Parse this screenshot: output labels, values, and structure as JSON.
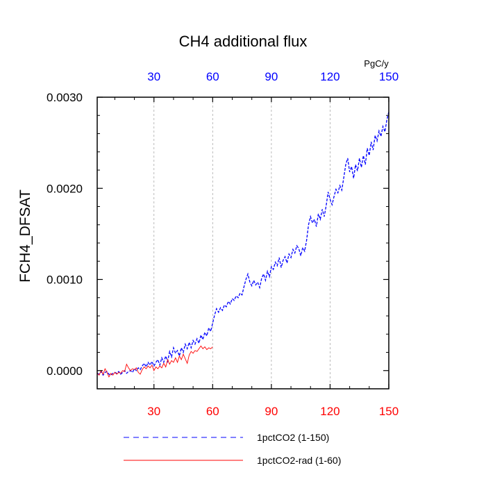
{
  "chart_data": {
    "type": "line",
    "title": "CH4 additional flux",
    "ylabel": "FCH4_DFSAT",
    "xlabel": "",
    "xlim": [
      1,
      150
    ],
    "ylim": [
      -0.0002,
      0.003
    ],
    "grid": "vertical dashed at bottom x ticks",
    "bottom_axis": {
      "ticks": [
        30,
        60,
        90,
        120,
        150
      ],
      "tick_labels": [
        "30",
        "60",
        "90",
        "120",
        "150"
      ],
      "color": "#ff0000"
    },
    "top_axis": {
      "ticks": [
        30,
        60,
        90,
        120,
        150
      ],
      "tick_labels": [
        "30",
        "60",
        "90",
        "120",
        "150"
      ],
      "unit_label": "PgC/y",
      "color": "#0000ff"
    },
    "y_axis": {
      "ticks": [
        0.0,
        0.001,
        0.002,
        0.003
      ],
      "tick_labels": [
        "0.0000",
        "0.0010",
        "0.0020",
        "0.0030"
      ]
    },
    "legend_position": "bottom-center",
    "series": [
      {
        "name": "1pctCO2 (1-150)",
        "color": "#0000ff",
        "dash": "dashed",
        "x_start": 1,
        "y": [
          -3e-05,
          -4e-05,
          -1e-05,
          -5e-05,
          -2e-05,
          -1e-05,
          -4e-05,
          -5e-05,
          -3e-05,
          -2e-05,
          -3e-05,
          -1e-05,
          -4e-05,
          -2e-05,
          0.0,
          -3e-05,
          -1e-05,
          0.0,
          -2e-05,
          2e-05,
          0.0,
          3e-05,
          1e-05,
          5e-05,
          8e-05,
          4e-05,
          9e-05,
          6e-05,
          0.0001,
          5e-05,
          9e-05,
          0.00012,
          6e-05,
          0.00014,
          9e-05,
          0.00016,
          0.0001,
          0.00021,
          0.00015,
          0.00025,
          0.00019,
          0.00022,
          0.00016,
          0.00025,
          0.0002,
          0.00029,
          0.00024,
          0.00031,
          0.00025,
          0.00033,
          0.00029,
          0.00035,
          0.0003,
          0.00039,
          0.00034,
          0.00042,
          0.00038,
          0.00047,
          0.00043,
          0.00052,
          0.00061,
          0.00068,
          0.00064,
          0.00069,
          0.00066,
          0.00072,
          0.0007,
          0.00076,
          0.00073,
          0.00079,
          0.00077,
          0.00082,
          0.0008,
          0.00085,
          0.00083,
          0.00092,
          0.001,
          0.00106,
          0.00097,
          0.00093,
          0.00099,
          0.00094,
          0.00097,
          0.00091,
          0.00101,
          0.00106,
          0.00099,
          0.00109,
          0.00103,
          0.00114,
          0.00111,
          0.00119,
          0.00115,
          0.00124,
          0.00113,
          0.00121,
          0.00125,
          0.00118,
          0.00128,
          0.00124,
          0.00133,
          0.00129,
          0.00137,
          0.00134,
          0.00126,
          0.00135,
          0.00131,
          0.00143,
          0.0016,
          0.00169,
          0.00162,
          0.00166,
          0.00158,
          0.00172,
          0.00166,
          0.00177,
          0.00169,
          0.00181,
          0.00196,
          0.00188,
          0.00182,
          0.00191,
          0.00199,
          0.00195,
          0.00203,
          0.00198,
          0.00212,
          0.00226,
          0.00233,
          0.00218,
          0.00224,
          0.00211,
          0.00226,
          0.00219,
          0.00233,
          0.00223,
          0.00236,
          0.00226,
          0.00244,
          0.00236,
          0.00251,
          0.00242,
          0.00258,
          0.00252,
          0.00263,
          0.00257,
          0.00268,
          0.00262,
          0.00275,
          0.00284
        ]
      },
      {
        "name": "1pctCO2-rad (1-60)",
        "color": "#ff0000",
        "dash": "solid",
        "x_start": 1,
        "y": [
          -3e-05,
          -5e-05,
          0.0,
          -4e-05,
          2e-05,
          -2e-05,
          -7e-05,
          -3e-05,
          -5e-05,
          -2e-05,
          -4e-05,
          -2e-05,
          -3e-05,
          0.0,
          -1e-05,
          7e-05,
          3e-05,
          0.0,
          2e-05,
          1e-05,
          3e-05,
          -2e-05,
          -4e-05,
          1e-05,
          4e-05,
          2e-05,
          5e-05,
          3e-05,
          6e-05,
          0.0,
          4e-05,
          2e-05,
          5e-05,
          3e-05,
          8e-05,
          4e-05,
          0.00012,
          7e-05,
          0.00011,
          9e-05,
          0.00014,
          9e-05,
          0.00016,
          0.00012,
          0.00018,
          0.00013,
          8e-05,
          0.00017,
          0.00021,
          0.00019,
          0.00022,
          0.00021,
          0.00024,
          0.00027,
          0.00024,
          0.00026,
          0.00023,
          0.00025,
          0.00024,
          0.00026
        ]
      }
    ]
  }
}
